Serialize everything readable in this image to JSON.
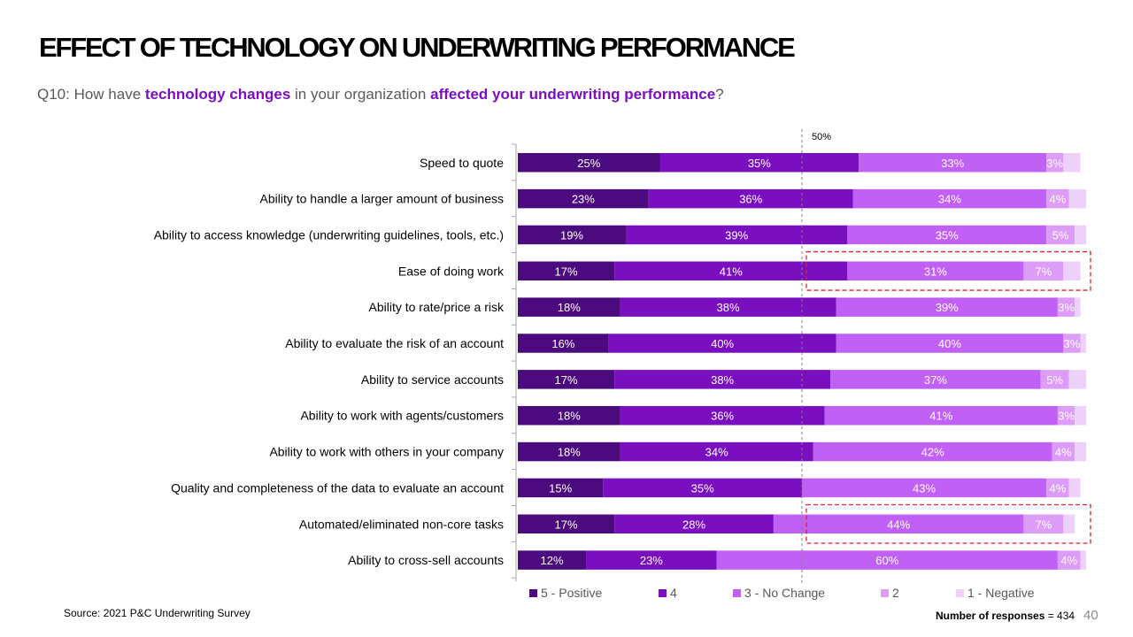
{
  "title": "EFFECT OF TECHNOLOGY ON UNDERWRITING PERFORMANCE",
  "subtitle": {
    "prefix": "Q10: How have ",
    "highlight1": "technology changes",
    "middle": " in your organization ",
    "highlight2": "affected your underwriting performance",
    "suffix": "?"
  },
  "source": "Source: 2021 P&C Underwriting Survey",
  "responses": {
    "label": "Number of responses",
    "value": "= 434"
  },
  "page_number": "40",
  "reference_line_label": "50%",
  "colors": [
    "#4b0a7d",
    "#7a0fc0",
    "#c060f5",
    "#dc9cf7",
    "#ecd2fb"
  ],
  "chart_data": {
    "type": "bar",
    "orientation": "horizontal",
    "stacked": true,
    "xlim": [
      0,
      100
    ],
    "reference_line": 50,
    "legend_position": "bottom",
    "categories": [
      "Speed to quote",
      "Ability to handle a larger amount of business",
      "Ability to access knowledge (underwriting guidelines, tools, etc.)",
      "Ease of doing work",
      "Ability to rate/price a risk",
      "Ability to evaluate the risk of an account",
      "Ability to service accounts",
      "Ability to work with agents/customers",
      "Ability to work with others in your company",
      "Quality and completeness of the data to evaluate an account",
      "Automated/eliminated non-core tasks",
      "Ability to cross-sell accounts"
    ],
    "series": [
      {
        "name": "5 - Positive",
        "values": [
          25,
          23,
          19,
          17,
          18,
          16,
          17,
          18,
          18,
          15,
          17,
          12
        ]
      },
      {
        "name": "4",
        "values": [
          35,
          36,
          39,
          41,
          38,
          40,
          38,
          36,
          34,
          35,
          28,
          23
        ]
      },
      {
        "name": "3 - No Change",
        "values": [
          33,
          34,
          35,
          31,
          39,
          40,
          37,
          41,
          42,
          43,
          44,
          60
        ]
      },
      {
        "name": "2",
        "values": [
          3,
          4,
          5,
          7,
          3,
          3,
          5,
          3,
          4,
          4,
          7,
          4
        ]
      },
      {
        "name": "1 - Negative",
        "values": [
          3,
          3,
          2,
          3,
          1,
          1,
          3,
          2,
          2,
          2,
          2,
          1
        ]
      }
    ],
    "highlighted_categories": [
      "Ease of doing work",
      "Automated/eliminated non-core tasks"
    ]
  }
}
